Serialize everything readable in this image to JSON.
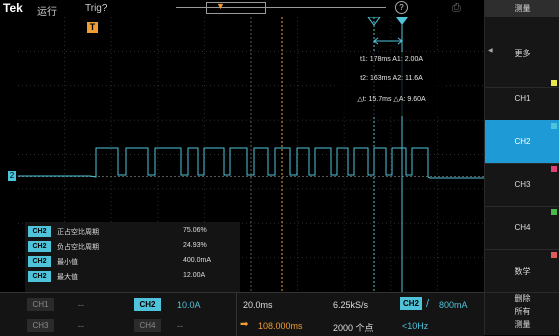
{
  "top_bar": {
    "logo": "Tek",
    "run_status": "运行",
    "trigger_status": "Trig?"
  },
  "markers": {
    "trigger": "T",
    "channel2": "2"
  },
  "cursor_readout": {
    "line1": "t1: 178ms  A1: 2.00A",
    "line2": "t2: 163ms  A2: 11.6A",
    "line3": "△t: 15.7ms  △A: 9.60A"
  },
  "measurements": [
    {
      "channel": "CH2",
      "name": "正占空比周期",
      "value": "75.06%"
    },
    {
      "channel": "CH2",
      "name": "负占空比周期",
      "value": "24.93%"
    },
    {
      "channel": "CH2",
      "name": "最小值",
      "value": "400.0mA"
    },
    {
      "channel": "CH2",
      "name": "最大值",
      "value": "12.00A"
    }
  ],
  "bottom_bar": {
    "ch1_label": "CH1",
    "ch1_value": "--",
    "ch2_label": "CH2",
    "ch2_value": "10.0A",
    "ch3_label": "CH3",
    "ch3_value": "--",
    "ch4_label": "CH4",
    "ch4_value": "--",
    "timebase": "20.0ms",
    "trigger_position": "108.000ms",
    "sample_rate": "6.25kS/s",
    "record_length": "2000 个点",
    "trigger_source": "CH2",
    "trigger_slope": "/",
    "trigger_level": "800mA",
    "trigger_frequency": "<10Hz"
  },
  "right_menu": {
    "title": "测量",
    "items": [
      {
        "label": "更多",
        "selected": false,
        "color": ""
      },
      {
        "label": "CH1",
        "selected": false,
        "color": "#e8e84a"
      },
      {
        "label": "CH2",
        "selected": true,
        "color": "#4fc3d9"
      },
      {
        "label": "CH3",
        "selected": false,
        "color": "#e0407a"
      },
      {
        "label": "CH4",
        "selected": false,
        "color": "#4ab84a"
      },
      {
        "label": "数学",
        "selected": false,
        "color": "#e05a5a"
      }
    ],
    "last_item_lines": [
      "删除",
      "所有",
      "测量"
    ]
  },
  "colors": {
    "ch2_trace": "#4fc3d9",
    "trigger": "#f19c34",
    "selected_menu": "#1e9bd6"
  }
}
